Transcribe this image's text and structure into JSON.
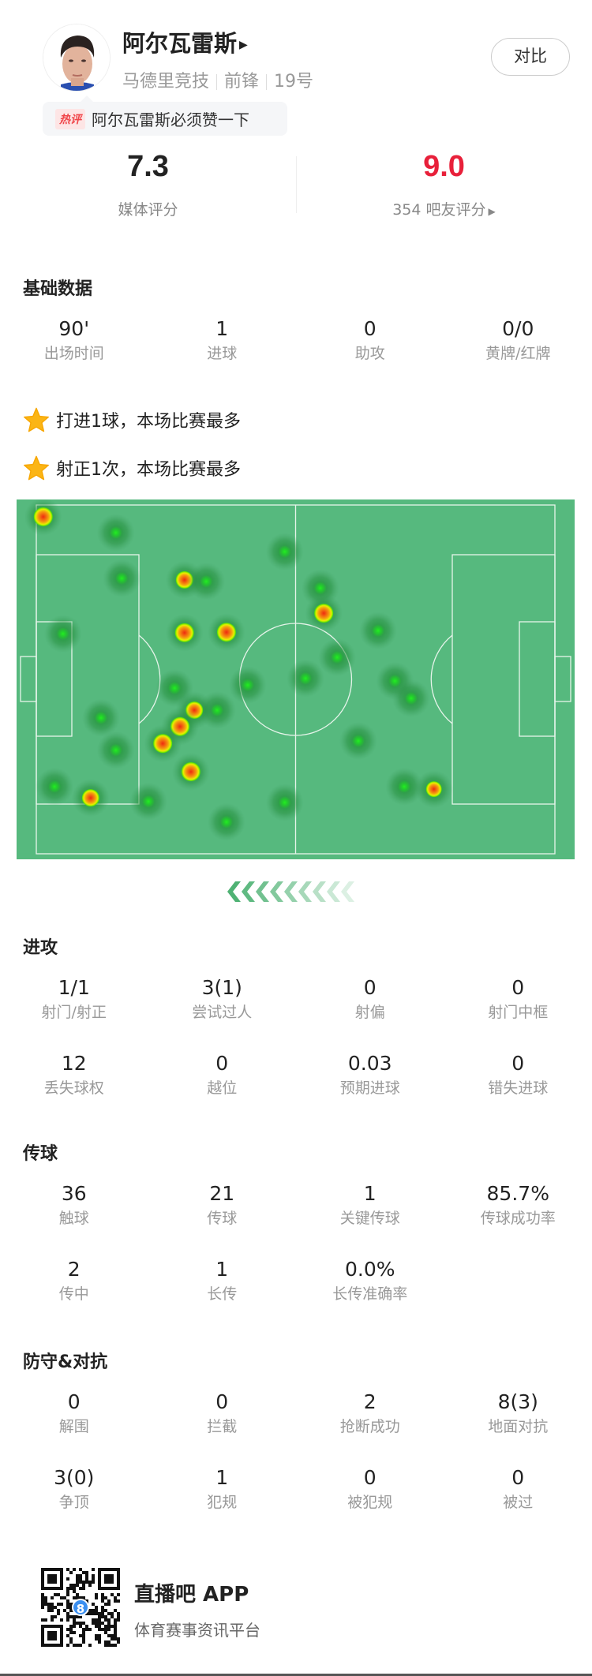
{
  "player": {
    "name": "阿尔瓦雷斯",
    "team": "马德里竞技",
    "position": "前锋",
    "number": "19号",
    "compare_label": "对比"
  },
  "hot_comment": {
    "tag": "热评",
    "text": "阿尔瓦雷斯必须赞一下"
  },
  "ratings": {
    "media": {
      "value": "7.3",
      "label": "媒体评分"
    },
    "fans": {
      "value": "9.0",
      "label": "354 吧友评分",
      "color": "#e8203a"
    }
  },
  "basic": {
    "title": "基础数据",
    "stats": [
      {
        "value": "90'",
        "label": "出场时间"
      },
      {
        "value": "1",
        "label": "进球"
      },
      {
        "value": "0",
        "label": "助攻"
      },
      {
        "value": "0/0",
        "label": "黄牌/红牌"
      }
    ],
    "highlights": [
      "打进1球，本场比赛最多",
      "射正1次，本场比赛最多"
    ]
  },
  "heatmap": {
    "pitch_color": "#56b97e",
    "pitch_size_m": [
      105,
      68
    ],
    "points": [
      [
        1.4,
        2.3,
        1.0
      ],
      [
        16.1,
        5.4,
        0.2
      ],
      [
        50.3,
        9.1,
        0.2
      ],
      [
        17.3,
        14.3,
        0.2
      ],
      [
        30.0,
        14.6,
        0.8
      ],
      [
        34.4,
        14.9,
        0.2
      ],
      [
        57.5,
        16.2,
        0.2
      ],
      [
        58.2,
        21.1,
        1.0
      ],
      [
        5.4,
        25.1,
        0.2
      ],
      [
        30.0,
        24.9,
        1.0
      ],
      [
        38.5,
        24.8,
        1.0
      ],
      [
        69.2,
        24.5,
        0.2
      ],
      [
        60.9,
        29.7,
        0.2
      ],
      [
        54.5,
        33.8,
        0.2
      ],
      [
        42.8,
        35.1,
        0.2
      ],
      [
        28.0,
        35.7,
        0.2
      ],
      [
        72.6,
        34.3,
        0.3
      ],
      [
        75.9,
        37.7,
        0.3
      ],
      [
        36.6,
        40.0,
        0.3
      ],
      [
        32.0,
        40.0,
        0.8
      ],
      [
        29.1,
        43.2,
        1.0
      ],
      [
        25.6,
        46.5,
        1.0
      ],
      [
        13.1,
        41.5,
        0.2
      ],
      [
        16.1,
        47.8,
        0.2
      ],
      [
        65.2,
        46.0,
        0.2
      ],
      [
        31.3,
        52.0,
        1.0
      ],
      [
        3.7,
        54.9,
        0.2
      ],
      [
        11.0,
        57.1,
        0.8
      ],
      [
        22.7,
        57.8,
        0.2
      ],
      [
        50.3,
        58.0,
        0.2
      ],
      [
        38.5,
        61.8,
        0.2
      ],
      [
        74.5,
        54.9,
        0.2
      ],
      [
        80.5,
        55.4,
        0.6
      ]
    ]
  },
  "attack": {
    "title": "进攻",
    "stats": [
      {
        "value": "1/1",
        "label": "射门/射正"
      },
      {
        "value": "3(1)",
        "label": "尝试过人"
      },
      {
        "value": "0",
        "label": "射偏"
      },
      {
        "value": "0",
        "label": "射门中框"
      },
      {
        "value": "12",
        "label": "丢失球权"
      },
      {
        "value": "0",
        "label": "越位"
      },
      {
        "value": "0.03",
        "label": "预期进球"
      },
      {
        "value": "0",
        "label": "错失进球"
      }
    ]
  },
  "passing": {
    "title": "传球",
    "stats": [
      {
        "value": "36",
        "label": "触球"
      },
      {
        "value": "21",
        "label": "传球"
      },
      {
        "value": "1",
        "label": "关键传球"
      },
      {
        "value": "85.7%",
        "label": "传球成功率"
      },
      {
        "value": "2",
        "label": "传中"
      },
      {
        "value": "1",
        "label": "长传"
      },
      {
        "value": "0.0%",
        "label": "长传准确率"
      }
    ]
  },
  "defense": {
    "title": "防守&对抗",
    "stats": [
      {
        "value": "0",
        "label": "解围"
      },
      {
        "value": "0",
        "label": "拦截"
      },
      {
        "value": "2",
        "label": "抢断成功"
      },
      {
        "value": "8(3)",
        "label": "地面对抗"
      },
      {
        "value": "3(0)",
        "label": "争顶"
      },
      {
        "value": "1",
        "label": "犯规"
      },
      {
        "value": "0",
        "label": "被犯规"
      },
      {
        "value": "0",
        "label": "被过"
      }
    ]
  },
  "footer": {
    "app_name": "直播吧 APP",
    "tagline": "体育赛事资讯平台",
    "qr_badge": "8"
  }
}
